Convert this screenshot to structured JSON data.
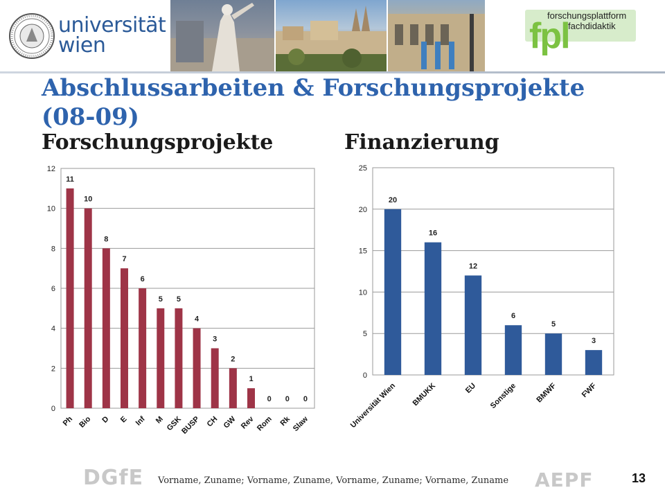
{
  "header": {
    "university_logo_text": "universität wien",
    "university_logo_line1": "universität",
    "university_logo_line2": "wien",
    "platform_logo_title": "forschungsplattform",
    "platform_logo_subtitle": "fachdidaktik",
    "platform_logo_mark": "fpl",
    "photos": [
      "statue-photo",
      "vienna-panorama-photo",
      "university-building-photo"
    ]
  },
  "slide": {
    "title": "Abschlussarbeiten & Forschungsprojekte (08-09)",
    "left_heading": "Forschungsprojekte",
    "right_heading": "Finanzierung"
  },
  "colors": {
    "title": "#2e63ad",
    "left_bars": "#9e3447",
    "right_bars": "#2f5a9a"
  },
  "chart_data": [
    {
      "type": "bar",
      "categories": [
        "Ph",
        "Bio",
        "D",
        "E",
        "Inf",
        "M",
        "GSK",
        "BUSP",
        "CH",
        "GW",
        "Rev",
        "Rom",
        "Rk",
        "Slaw"
      ],
      "values": [
        11,
        10,
        8,
        7,
        6,
        5,
        5,
        4,
        3,
        2,
        1,
        0,
        0,
        0
      ],
      "ylim": [
        0,
        12
      ],
      "yticks": [
        0,
        2,
        4,
        6,
        8,
        10,
        12
      ],
      "grid": true,
      "data_labels": true,
      "legend": "none"
    },
    {
      "type": "bar",
      "categories": [
        "Universität Wien",
        "BMUKK",
        "EU",
        "Sonstige",
        "BMWF",
        "FWF"
      ],
      "values": [
        20,
        16,
        12,
        6,
        5,
        3
      ],
      "ylim": [
        0,
        25
      ],
      "yticks": [
        0,
        5,
        10,
        15,
        20,
        25
      ],
      "grid": true,
      "data_labels": true,
      "legend": "none"
    }
  ],
  "footer": {
    "left_logo": "DGfE",
    "names": "Vorname, Zuname; Vorname, Zuname, Vorname, Zuname; Vorname, Zuname",
    "right_logo": "AEPF",
    "page_number": "13"
  }
}
